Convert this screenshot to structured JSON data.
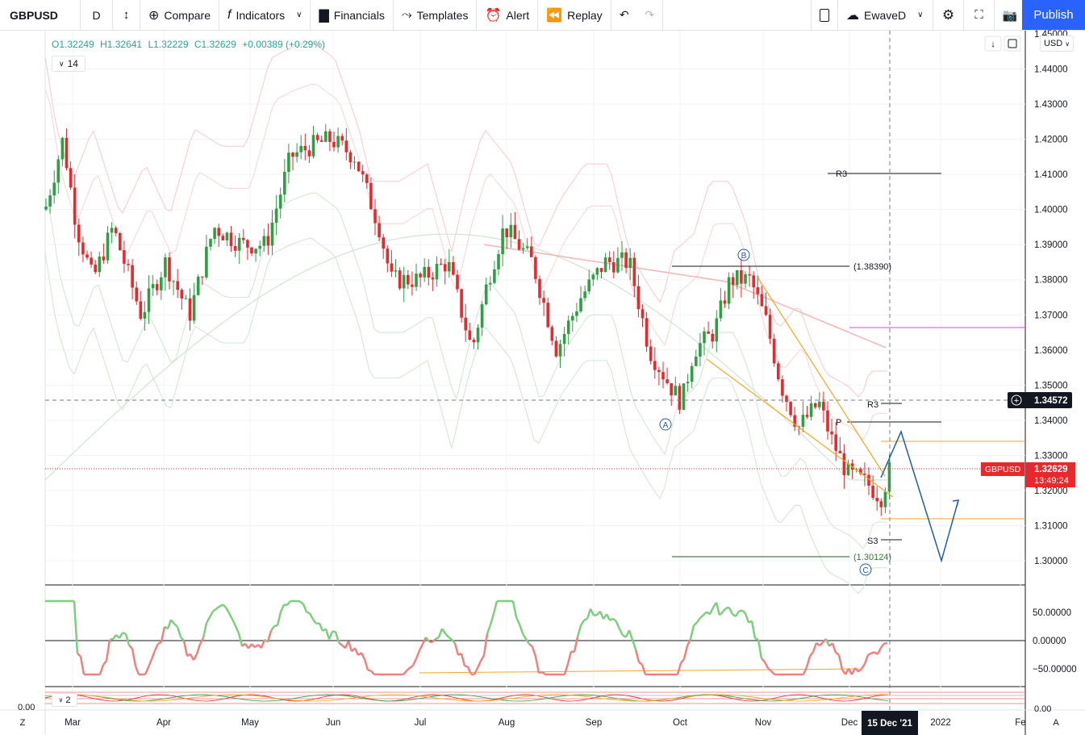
{
  "toolbar": {
    "symbol": "GBPUSD",
    "interval": "D",
    "compare": "Compare",
    "indicators": "Indicators",
    "financials": "Financials",
    "templates": "Templates",
    "alert": "Alert",
    "replay": "Replay",
    "layout_name": "EwaveD",
    "publish": "Publish"
  },
  "legend": {
    "open": "O1.32249",
    "high": "H1.32641",
    "low": "L1.32229",
    "close": "C1.32629",
    "change": "+0.00389 (+0.29%)",
    "period": "14",
    "period2": "2"
  },
  "currency": "USD",
  "price_axis": {
    "ticks": [
      "1.45000",
      "1.44000",
      "1.43000",
      "1.42000",
      "1.41000",
      "1.40000",
      "1.39000",
      "1.38000",
      "1.37000",
      "1.36000",
      "1.35000",
      "1.34000",
      "1.33000",
      "1.32000",
      "1.31000",
      "1.30000"
    ],
    "crosshair_price": "1.34572",
    "last_label": "1.32629",
    "countdown": "13:49:24",
    "symbol_tag": "GBPUSD"
  },
  "osc_axis": {
    "ticks": [
      "50.00000",
      "0.00000",
      "−50.00000"
    ],
    "bottom_left": "0.00",
    "bottom_right": "0.00"
  },
  "time_axis": {
    "months": [
      "Mar",
      "Apr",
      "May",
      "Jun",
      "Jul",
      "Aug",
      "Sep",
      "Oct",
      "Nov",
      "Dec",
      "2022",
      "Fe"
    ],
    "crosshair_date": "15 Dec '21",
    "zoom_left": "Z",
    "auto": "A"
  },
  "annotations": {
    "r3_top": "R3",
    "r3_low": "R3",
    "p": "P",
    "s3": "S3",
    "fib_high": "(1.38390)",
    "fib_low": "(1.30124)",
    "wave_a": "A",
    "wave_b": "B",
    "wave_c": "C"
  },
  "colors": {
    "up": "#2ea043",
    "down": "#e8282b",
    "accent": "#2962ff",
    "wave": "#1f5fa6",
    "orange": "#f5a623",
    "band": "#f4b6b6",
    "ma": "#b7dcb7"
  },
  "chart_data": {
    "type": "candlestick",
    "symbol": "GBPUSD",
    "interval": "D",
    "ylim": [
      1.295,
      1.45
    ],
    "last": {
      "open": 1.32249,
      "high": 1.32641,
      "low": 1.32229,
      "close": 1.32629
    },
    "levels": {
      "R3_upper": 1.41,
      "fib_high": 1.3839,
      "R3": 1.345,
      "P": 1.3395,
      "S3": 1.306,
      "fib_low": 1.30124
    }
  }
}
